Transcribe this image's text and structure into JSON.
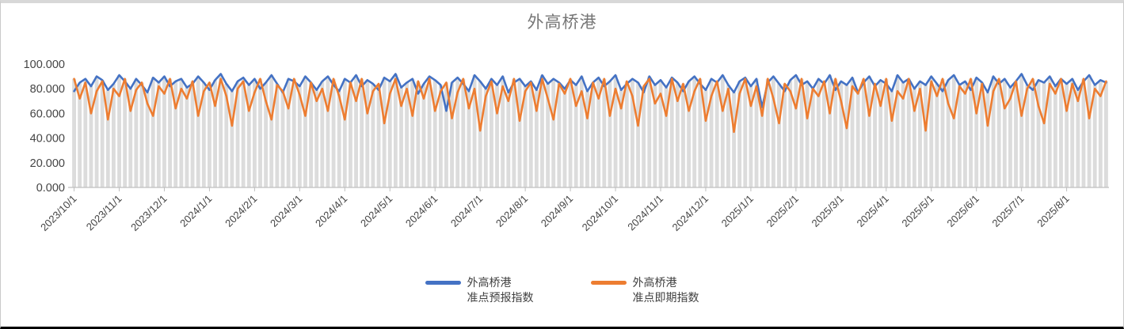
{
  "window": {
    "background": "#ffffff",
    "border_top_color": "#d8d8d8",
    "border_bottom_color": "#000000",
    "border_side_color": "#c9c9c9"
  },
  "chart_data": {
    "type": "line",
    "title": "外高桥港",
    "title_color": "#767676",
    "xlabel": "",
    "ylabel": "",
    "ylim": [
      0,
      100
    ],
    "grid": false,
    "legend_position": "bottom",
    "axis_color": "#bfbfbf",
    "label_color": "#444444",
    "dropline_color": "#dcdcdc",
    "y_tick_labels": [
      "100.000",
      "80.000",
      "60.000",
      "40.000",
      "20.000",
      "0.000"
    ],
    "x_tick_labels": [
      "2023/10/1",
      "2023/11/1",
      "2023/12/1",
      "2024/1/1",
      "2024/2/1",
      "2024/3/1",
      "2024/4/1",
      "2024/5/1",
      "2024/6/1",
      "2024/7/1",
      "2024/8/1",
      "2024/9/1",
      "2024/10/1",
      "2024/11/1",
      "2024/12/1",
      "2025/1/1",
      "2025/2/1",
      "2025/3/1",
      "2025/4/1",
      "2025/5/1",
      "2025/6/1",
      "2025/7/1",
      "2025/8/1"
    ],
    "points_per_month": 8,
    "series": [
      {
        "name": "外高桥港\n准点预报指数",
        "color": "#4472C4",
        "values": [
          78,
          85,
          88,
          82,
          90,
          87,
          79,
          84,
          91,
          86,
          80,
          88,
          83,
          77,
          89,
          85,
          90,
          82,
          86,
          88,
          81,
          84,
          90,
          85,
          79,
          87,
          92,
          84,
          78,
          86,
          89,
          83,
          88,
          80,
          85,
          91,
          84,
          77,
          88,
          86,
          82,
          90,
          85,
          79,
          86,
          90,
          83,
          78,
          88,
          85,
          91,
          82,
          87,
          84,
          79,
          89,
          86,
          92,
          81,
          85,
          88,
          76,
          84,
          90,
          87,
          83,
          62,
          85,
          89,
          84,
          78,
          91,
          86,
          80,
          88,
          83,
          90,
          77,
          85,
          88,
          82,
          86,
          79,
          91,
          84,
          88,
          85,
          80,
          87,
          83,
          90,
          78,
          85,
          89,
          82,
          86,
          91,
          79,
          84,
          88,
          85,
          77,
          90,
          83,
          87,
          81,
          89,
          85,
          78,
          86,
          90,
          84,
          79,
          88,
          85,
          91,
          83,
          77,
          86,
          89,
          82,
          88,
          65,
          85,
          90,
          84,
          78,
          87,
          91,
          83,
          86,
          80,
          88,
          84,
          91,
          79,
          86,
          83,
          89,
          77,
          85,
          90,
          82,
          87,
          84,
          78,
          91,
          85,
          88,
          80,
          86,
          83,
          90,
          84,
          78,
          87,
          91,
          83,
          86,
          79,
          89,
          85,
          77,
          90,
          84,
          88,
          81,
          86,
          92,
          83,
          79,
          87,
          85,
          90,
          82,
          88,
          84,
          88,
          79,
          86,
          91,
          83,
          87,
          85
        ]
      },
      {
        "name": "外高桥港\n准点即期指数",
        "color": "#ED7D31",
        "values": [
          88,
          72,
          85,
          60,
          78,
          86,
          55,
          80,
          74,
          88,
          62,
          79,
          85,
          68,
          58,
          82,
          76,
          88,
          64,
          80,
          72,
          86,
          58,
          78,
          85,
          66,
          88,
          74,
          50,
          80,
          86,
          62,
          77,
          88,
          70,
          55,
          83,
          78,
          64,
          88,
          75,
          58,
          85,
          70,
          80,
          62,
          88,
          74,
          55,
          85,
          70,
          88,
          60,
          78,
          84,
          52,
          76,
          88,
          66,
          80,
          58,
          86,
          72,
          88,
          62,
          78,
          85,
          56,
          77,
          88,
          64,
          80,
          46,
          74,
          86,
          60,
          82,
          70,
          88,
          54,
          78,
          85,
          62,
          88,
          72,
          55,
          84,
          76,
          88,
          66,
          78,
          56,
          85,
          72,
          88,
          58,
          80,
          64,
          86,
          74,
          50,
          82,
          88,
          68,
          76,
          58,
          88,
          70,
          84,
          62,
          78,
          88,
          54,
          74,
          86,
          62,
          80,
          45,
          76,
          88,
          66,
          82,
          58,
          88,
          72,
          52,
          84,
          78,
          64,
          88,
          56,
          80,
          74,
          86,
          60,
          88,
          70,
          48,
          82,
          76,
          88,
          58,
          84,
          66,
          88,
          54,
          78,
          72,
          88,
          62,
          80,
          46,
          86,
          74,
          88,
          68,
          56,
          82,
          76,
          88,
          60,
          84,
          50,
          78,
          88,
          64,
          72,
          86,
          58,
          80,
          88,
          66,
          52,
          84,
          76,
          88,
          62,
          84,
          70,
          88,
          56,
          80,
          74,
          86
        ]
      }
    ]
  }
}
